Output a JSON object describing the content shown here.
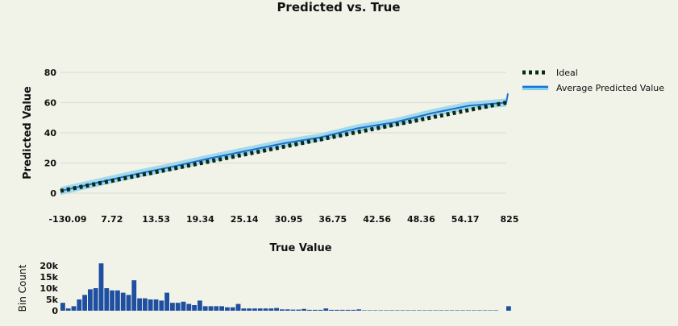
{
  "chart_data": [
    {
      "type": "line",
      "title": "Predicted vs. True",
      "xlabel": "True Value",
      "ylabel": "Predicted Value",
      "x_tick_labels": [
        "-130.09",
        "7.72",
        "13.53",
        "19.34",
        "25.14",
        "30.95",
        "36.75",
        "42.56",
        "48.36",
        "54.17",
        "825"
      ],
      "yticks": [
        0,
        20,
        40,
        60,
        80
      ],
      "ylim": [
        0,
        80
      ],
      "legend_position": "top-right",
      "grid": true,
      "series": [
        {
          "name": "Ideal",
          "style": "dotted",
          "color": "#0b2a16",
          "values": [
            1.5,
            60
          ]
        },
        {
          "name": "Average Predicted Value",
          "color": "#1e6fd0",
          "band_color": "#7fd0ee",
          "values": [
            1.5,
            7,
            12.5,
            17.5,
            23,
            28,
            33,
            37,
            43,
            47,
            53,
            58,
            60,
            66
          ]
        }
      ]
    },
    {
      "type": "bar",
      "ylabel": "Bin Count",
      "yticks": [
        "0",
        "5k",
        "10k",
        "15k",
        "20k"
      ],
      "ylim": [
        0,
        20000
      ],
      "color": "#1f4fa0",
      "values": [
        3500,
        1000,
        2000,
        5000,
        7000,
        9500,
        10000,
        21000,
        10000,
        9000,
        9000,
        8000,
        7000,
        13500,
        5500,
        5500,
        5000,
        5000,
        4500,
        8000,
        3500,
        3500,
        4000,
        3000,
        2500,
        4500,
        2000,
        2000,
        2000,
        2000,
        1500,
        1500,
        3000,
        1000,
        1000,
        1000,
        1000,
        1000,
        1000,
        1200,
        600,
        600,
        500,
        500,
        800,
        400,
        400,
        400,
        1000,
        400,
        400,
        400,
        400,
        400,
        600,
        200,
        200,
        200,
        200,
        200,
        200,
        200,
        200,
        200,
        200,
        200,
        200,
        200,
        200,
        200,
        200,
        200,
        200,
        200,
        200,
        200,
        200,
        200,
        200,
        200,
        2000
      ]
    }
  ]
}
